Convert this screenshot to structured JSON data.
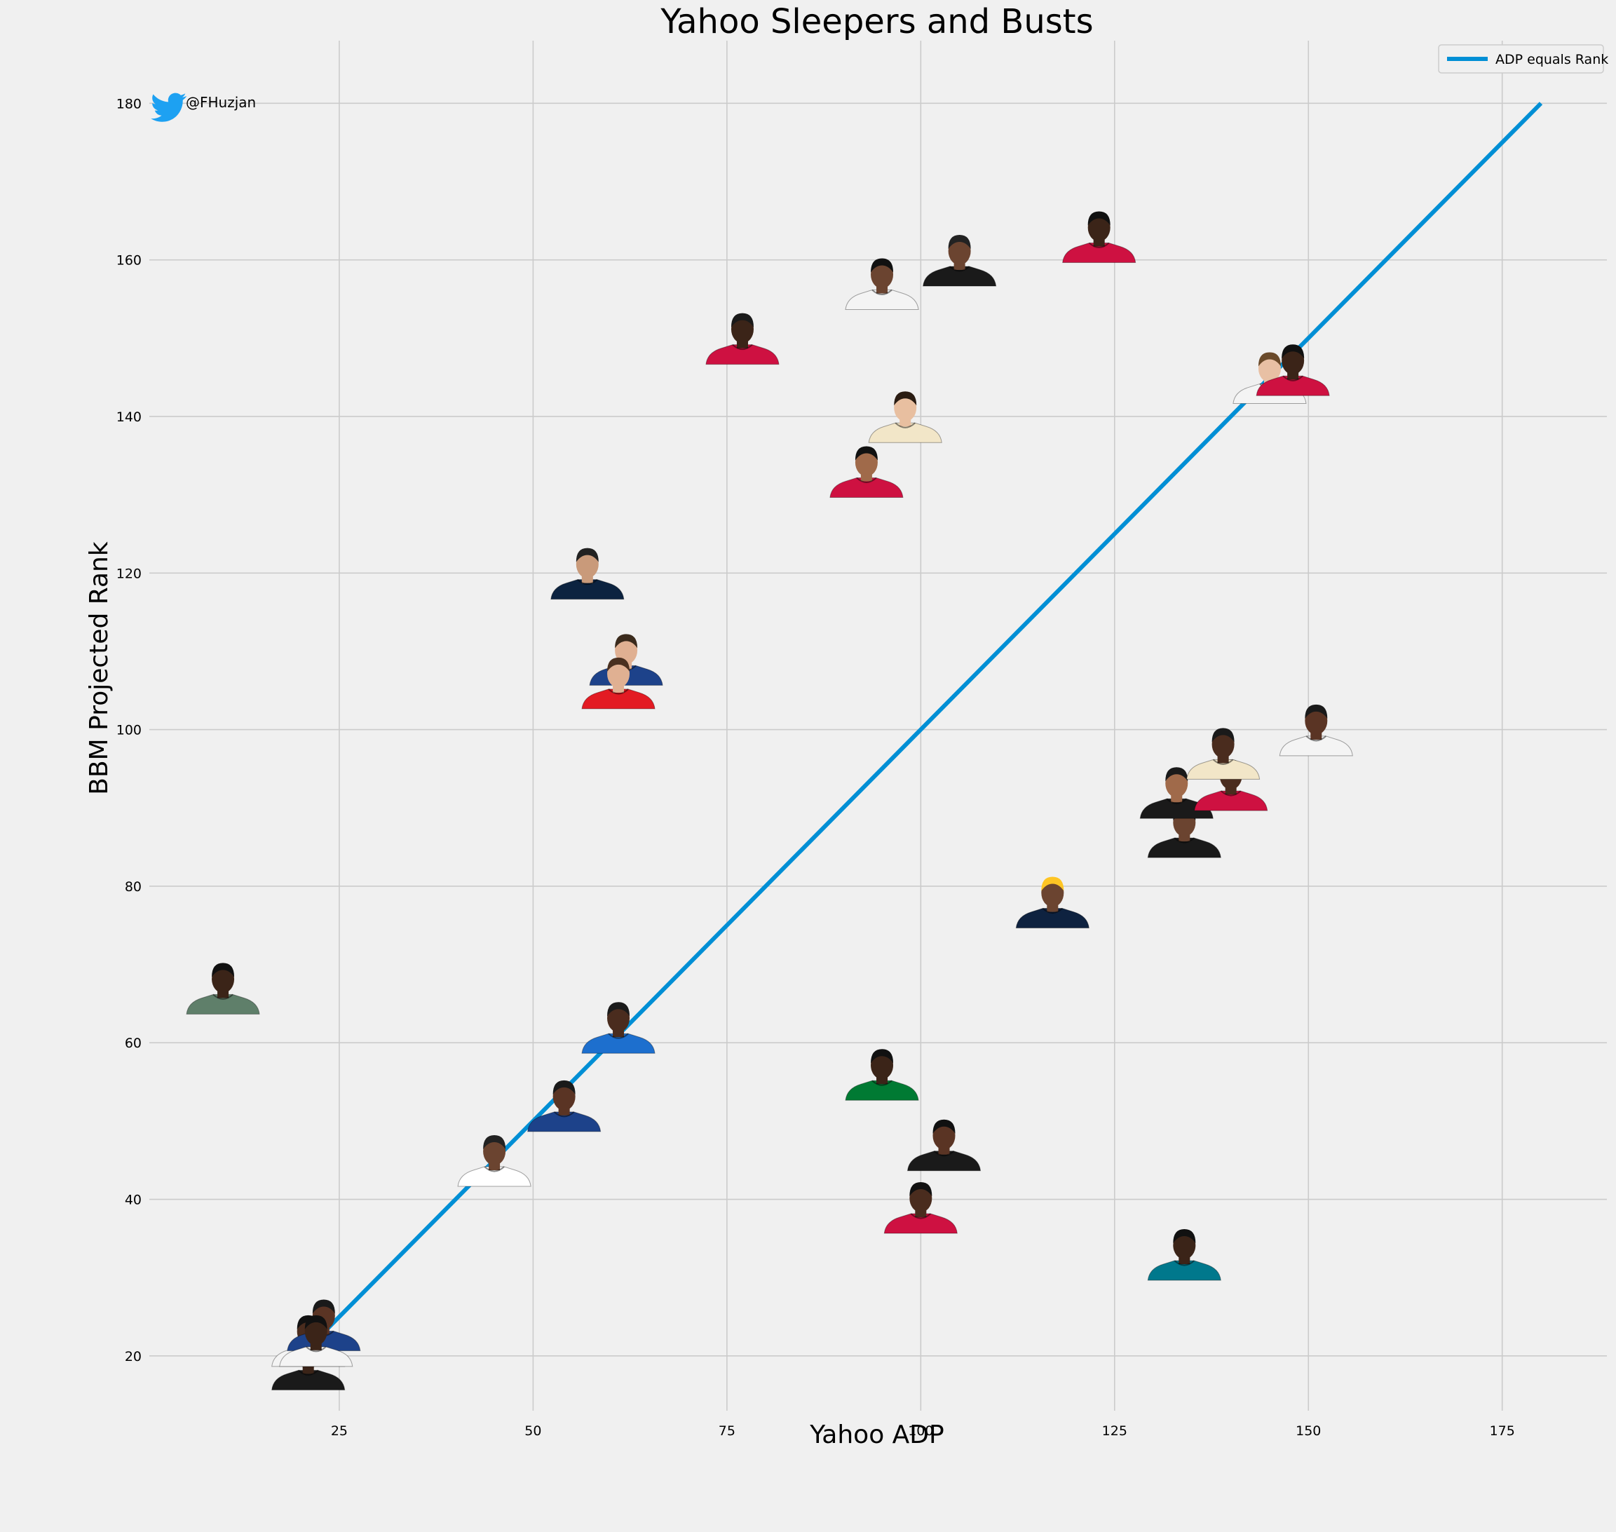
{
  "chart_data": {
    "type": "scatter",
    "title": "Yahoo Sleepers and Busts",
    "xlabel": "Yahoo ADP",
    "ylabel": "BBM Projected Rank",
    "xlim": [
      0.5,
      188.5
    ],
    "ylim": [
      13,
      188
    ],
    "xticks": [
      25,
      50,
      75,
      100,
      125,
      150,
      175
    ],
    "yticks": [
      20,
      40,
      60,
      80,
      100,
      120,
      140,
      160,
      180
    ],
    "grid": true,
    "legend": {
      "position": "top-right",
      "entries": [
        "ADP equals Rank"
      ]
    },
    "reference_line": {
      "name": "ADP equals Rank",
      "x": [
        22,
        180
      ],
      "y": [
        22,
        180
      ],
      "color": "#008fd5"
    },
    "annotation": "@FHuzjan",
    "points": [
      {
        "x": 21,
        "y": 17,
        "jersey": "#1a1a1a",
        "skin": "#3b2418",
        "hair": "#111111"
      },
      {
        "x": 21,
        "y": 20,
        "jersey": "#f4f4f4",
        "skin": "#4a2c1e",
        "hair": "#111111"
      },
      {
        "x": 23,
        "y": 22,
        "jersey": "#1d428a",
        "skin": "#5a3424",
        "hair": "#1a1a1a"
      },
      {
        "x": 22,
        "y": 20,
        "jersey": "#f4f4f4",
        "skin": "#3b2418",
        "hair": "#111111"
      },
      {
        "x": 10,
        "y": 65,
        "jersey": "#5f7f6a",
        "skin": "#3b2418",
        "hair": "#111111"
      },
      {
        "x": 45,
        "y": 43,
        "jersey": "#ffffff",
        "skin": "#6b4430",
        "hair": "#222222"
      },
      {
        "x": 54,
        "y": 50,
        "jersey": "#1d428a",
        "skin": "#5a3424",
        "hair": "#1a1a1a"
      },
      {
        "x": 61,
        "y": 60,
        "jersey": "#1d6fce",
        "skin": "#4a2c1e",
        "hair": "#1a1a1a"
      },
      {
        "x": 57,
        "y": 118,
        "jersey": "#0c2340",
        "skin": "#c99a7a",
        "hair": "#222222"
      },
      {
        "x": 62,
        "y": 107,
        "jersey": "#1d428a",
        "skin": "#e0b092",
        "hair": "#3a2a1c"
      },
      {
        "x": 61,
        "y": 104,
        "jersey": "#e31b23",
        "skin": "#e0b092",
        "hair": "#4a3020"
      },
      {
        "x": 77,
        "y": 148,
        "jersey": "#ce1141",
        "skin": "#3b2418",
        "hair": "#1a1a1a"
      },
      {
        "x": 93,
        "y": 131,
        "jersey": "#ce1141",
        "skin": "#a06a4a",
        "hair": "#111111"
      },
      {
        "x": 98,
        "y": 138,
        "jersey": "#f2e6c8",
        "skin": "#e8bfa0",
        "hair": "#2a1c12"
      },
      {
        "x": 95,
        "y": 155,
        "jersey": "#f4f4f4",
        "skin": "#6b4430",
        "hair": "#111111"
      },
      {
        "x": 105,
        "y": 158,
        "jersey": "#1a1a1a",
        "skin": "#6b4430",
        "hair": "#222222"
      },
      {
        "x": 123,
        "y": 161,
        "jersey": "#ce1141",
        "skin": "#3b2418",
        "hair": "#111111"
      },
      {
        "x": 145,
        "y": 143,
        "jersey": "#f4f4f4",
        "skin": "#e8c0a4",
        "hair": "#6a4a2a"
      },
      {
        "x": 148,
        "y": 144,
        "jersey": "#ce1141",
        "skin": "#3b2418",
        "hair": "#111111"
      },
      {
        "x": 95,
        "y": 54,
        "jersey": "#007a33",
        "skin": "#3b2418",
        "hair": "#111111"
      },
      {
        "x": 103,
        "y": 45,
        "jersey": "#1a1a1a",
        "skin": "#5a3424",
        "hair": "#111111"
      },
      {
        "x": 100,
        "y": 37,
        "jersey": "#ce1141",
        "skin": "#4a2c1e",
        "hair": "#111111"
      },
      {
        "x": 134,
        "y": 31,
        "jersey": "#00788c",
        "skin": "#3b2418",
        "hair": "#111111"
      },
      {
        "x": 117,
        "y": 76,
        "jersey": "#0e2240",
        "skin": "#6b4430",
        "hair": "#fec524"
      },
      {
        "x": 134,
        "y": 85,
        "jersey": "#1a1a1a",
        "skin": "#6b4430",
        "hair": "#1a1a1a"
      },
      {
        "x": 133,
        "y": 90,
        "jersey": "#1a1a1a",
        "skin": "#a06a4a",
        "hair": "#1a1a1a"
      },
      {
        "x": 140,
        "y": 91,
        "jersey": "#ce1141",
        "skin": "#4a2c1e",
        "hair": "#1a1a1a"
      },
      {
        "x": 139,
        "y": 95,
        "jersey": "#f2e6c8",
        "skin": "#4a2c1e",
        "hair": "#1a1a1a"
      },
      {
        "x": 151,
        "y": 98,
        "jersey": "#f4f4f4",
        "skin": "#5a3424",
        "hair": "#1a1a1a"
      }
    ]
  }
}
